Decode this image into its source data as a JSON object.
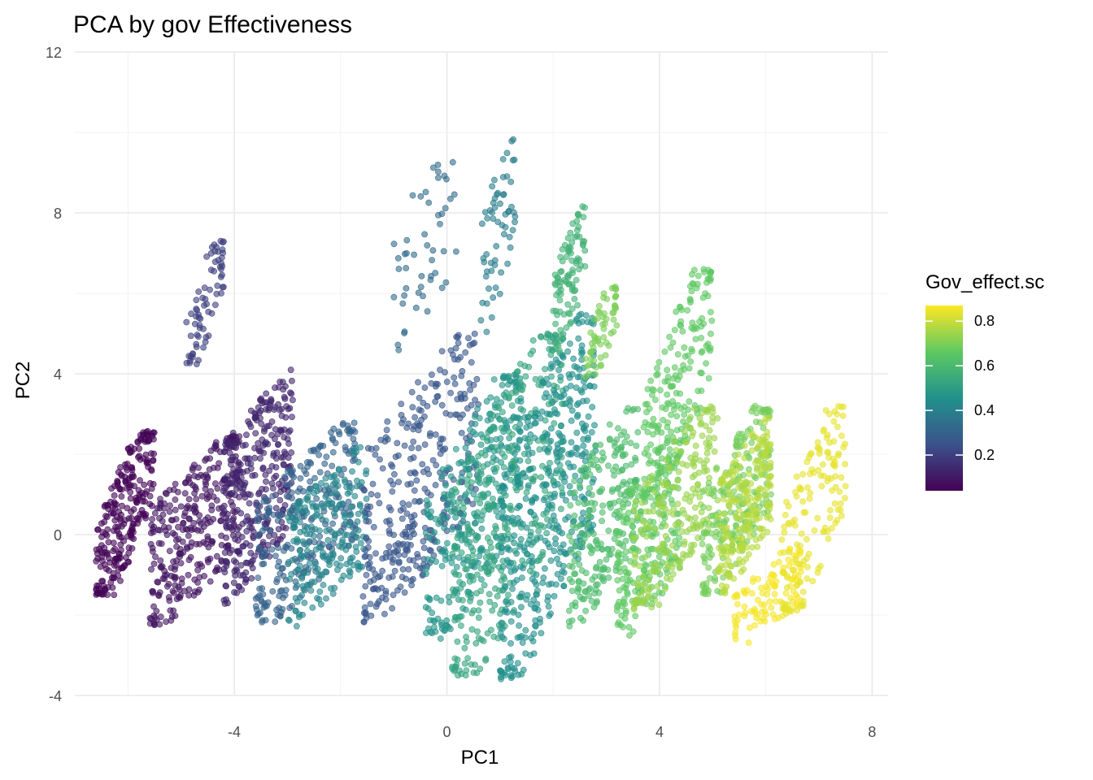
{
  "chart_data": {
    "type": "scatter",
    "title": "PCA by gov Effectiveness",
    "xlabel": "PC1",
    "ylabel": "PC2",
    "xlim": [
      -7.0,
      8.3
    ],
    "ylim": [
      -4.0,
      12.0
    ],
    "x_ticks": [
      -4,
      0,
      4,
      8
    ],
    "y_ticks": [
      -4,
      0,
      4,
      8,
      12
    ],
    "grid": true,
    "legend": {
      "title": "Gov_effect.sc",
      "position": "right",
      "type": "colorbar",
      "range": [
        0.04,
        0.87
      ],
      "ticks": [
        0.2,
        0.4,
        0.6,
        0.8
      ],
      "colors": [
        "#440154",
        "#3b528b",
        "#21918c",
        "#5ec962",
        "#fde725"
      ]
    },
    "point_alpha": 0.6,
    "clusters": [
      {
        "x": [
          -6.6,
          -5.5
        ],
        "y": [
          -1.5,
          2.6
        ],
        "color_value": 0.05,
        "slope": 3.0,
        "count": 260
      },
      {
        "x": [
          -5.6,
          -3.9
        ],
        "y": [
          -2.3,
          2.5
        ],
        "color_value": 0.09,
        "slope": 1.3,
        "count": 320
      },
      {
        "x": [
          -4.2,
          -2.9
        ],
        "y": [
          -1.8,
          4.2
        ],
        "color_value": 0.13,
        "slope": 1.6,
        "count": 320
      },
      {
        "x": [
          -4.9,
          -4.2
        ],
        "y": [
          4.2,
          7.3
        ],
        "color_value": 0.2,
        "slope": 4.0,
        "count": 70
      },
      {
        "x": [
          -3.6,
          -1.7
        ],
        "y": [
          -2.2,
          2.8
        ],
        "color_value": 0.3,
        "slope": 1.3,
        "count": 260
      },
      {
        "x": [
          -3.0,
          -1.5
        ],
        "y": [
          -2.3,
          2.2
        ],
        "color_value": 0.42,
        "slope": 1.2,
        "count": 220
      },
      {
        "x": [
          -1.6,
          0.6
        ],
        "y": [
          -2.2,
          5.0
        ],
        "color_value": 0.26,
        "slope": 1.7,
        "count": 340
      },
      {
        "x": [
          -1.0,
          0.2
        ],
        "y": [
          4.5,
          9.7
        ],
        "color_value": 0.33,
        "slope": 2.0,
        "count": 50
      },
      {
        "x": [
          0.6,
          1.3
        ],
        "y": [
          5.0,
          10.0
        ],
        "color_value": 0.39,
        "slope": 4.0,
        "count": 60
      },
      {
        "x": [
          -0.4,
          1.4
        ],
        "y": [
          -2.6,
          4.0
        ],
        "color_value": 0.47,
        "slope": 2.4,
        "count": 300
      },
      {
        "x": [
          0.1,
          2.2
        ],
        "y": [
          -3.5,
          5.0
        ],
        "color_value": 0.52,
        "slope": 2.5,
        "count": 380
      },
      {
        "x": [
          1.0,
          2.8
        ],
        "y": [
          -3.6,
          5.5
        ],
        "color_value": 0.45,
        "slope": 2.8,
        "count": 420
      },
      {
        "x": [
          2.0,
          2.6
        ],
        "y": [
          4.5,
          8.2
        ],
        "color_value": 0.57,
        "slope": 4.0,
        "count": 90
      },
      {
        "x": [
          2.3,
          3.6
        ],
        "y": [
          -2.3,
          3.4
        ],
        "color_value": 0.61,
        "slope": 2.0,
        "count": 220
      },
      {
        "x": [
          2.6,
          3.2
        ],
        "y": [
          3.8,
          6.2
        ],
        "color_value": 0.7,
        "slope": 3.5,
        "count": 60
      },
      {
        "x": [
          3.2,
          4.4
        ],
        "y": [
          -2.8,
          2.6
        ],
        "color_value": 0.66,
        "slope": 1.8,
        "count": 220
      },
      {
        "x": [
          3.7,
          5.0
        ],
        "y": [
          0.8,
          6.6
        ],
        "color_value": 0.66,
        "slope": 3.5,
        "count": 200
      },
      {
        "x": [
          3.5,
          5.1
        ],
        "y": [
          -1.9,
          3.2
        ],
        "color_value": 0.74,
        "slope": 2.0,
        "count": 220
      },
      {
        "x": [
          4.8,
          6.1
        ],
        "y": [
          -1.5,
          3.2
        ],
        "color_value": 0.69,
        "slope": 2.2,
        "count": 220
      },
      {
        "x": [
          5.1,
          6.1
        ],
        "y": [
          -1.5,
          2.9
        ],
        "color_value": 0.78,
        "slope": 2.0,
        "count": 200
      },
      {
        "x": [
          5.4,
          6.7
        ],
        "y": [
          -2.7,
          -0.3
        ],
        "color_value": 0.86,
        "slope": 1.0,
        "count": 110
      },
      {
        "x": [
          6.3,
          7.5
        ],
        "y": [
          -2.0,
          3.2
        ],
        "color_value": 0.84,
        "slope": 3.0,
        "count": 140
      }
    ]
  }
}
